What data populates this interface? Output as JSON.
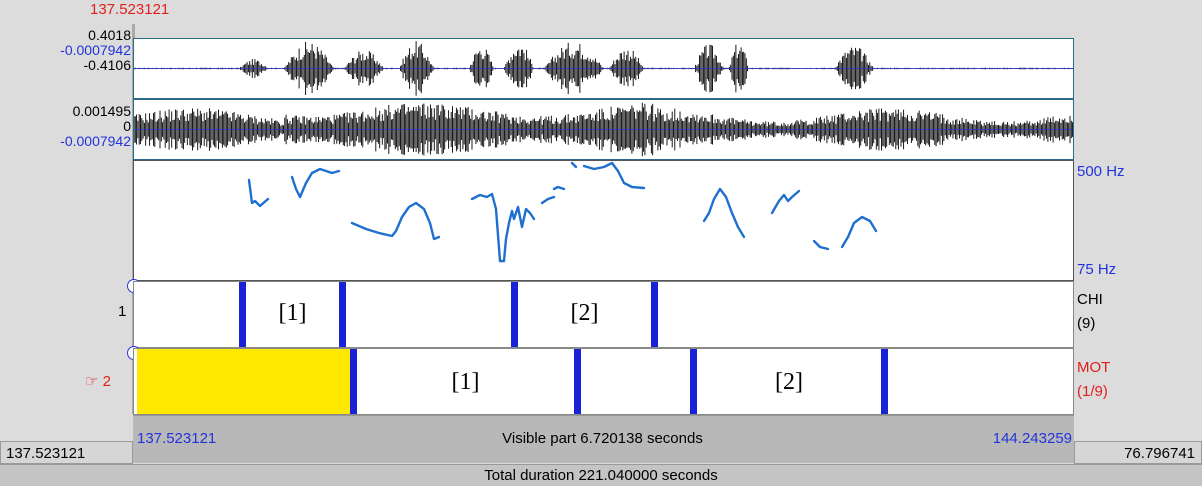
{
  "cursor_time": "137.523121",
  "waveform_ch1": {
    "max": "0.4018",
    "mid": "-0.0007942",
    "min": "-0.4106"
  },
  "waveform_ch2": {
    "max": "0.001495",
    "mid": "0",
    "min": "-0.0007942"
  },
  "pitch": {
    "top_label": "500 Hz",
    "bottom_label": "75 Hz"
  },
  "tiers": [
    {
      "number": "1",
      "name": "CHI",
      "count": "(9)",
      "selected": false,
      "intervals": [
        "[1]",
        "[2]"
      ]
    },
    {
      "number": "2",
      "marker": "☞",
      "name": "MOT",
      "count": "(1/9)",
      "selected": true,
      "intervals": [
        "[1]",
        "[2]"
      ]
    }
  ],
  "footer": {
    "left_outer": "137.523121",
    "visible_start": "137.523121",
    "visible_part": "Visible part 6.720138 seconds",
    "visible_end": "144.243259",
    "right_outer": "76.796741",
    "total_duration": "Total duration 221.040000 seconds"
  },
  "colors": {
    "selection": "#ffe800",
    "boundary": "#1a22d8",
    "pitch": "#1f6fd0",
    "red": "#e0201c",
    "blue": "#2233dd"
  }
}
